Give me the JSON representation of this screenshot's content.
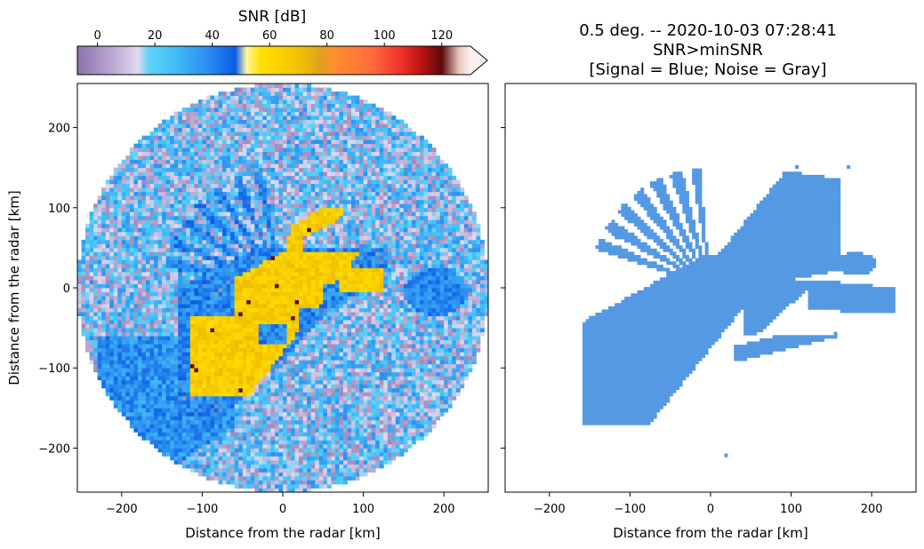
{
  "chart_data": [
    {
      "type": "heatmap",
      "name": "snr-ppi",
      "title": "",
      "colorbar": {
        "title": "SNR [dB]",
        "ticks": [
          0,
          20,
          40,
          60,
          80,
          100,
          120
        ],
        "range": [
          -7,
          130
        ],
        "extend": "max",
        "stops": [
          {
            "v": -7,
            "c": "#8d72ad"
          },
          {
            "v": 5,
            "c": "#b9a7d1"
          },
          {
            "v": 14,
            "c": "#e1d9ef"
          },
          {
            "v": 18,
            "c": "#5ed2f8"
          },
          {
            "v": 27,
            "c": "#42bdf5"
          },
          {
            "v": 38,
            "c": "#2d8ff0"
          },
          {
            "v": 48,
            "c": "#0a5ce6"
          },
          {
            "v": 52,
            "c": "#fff6a0"
          },
          {
            "v": 57,
            "c": "#ffe000"
          },
          {
            "v": 70,
            "c": "#f2c200"
          },
          {
            "v": 78,
            "c": "#e0a020"
          },
          {
            "v": 82,
            "c": "#ff9030"
          },
          {
            "v": 96,
            "c": "#ff6a3a"
          },
          {
            "v": 106,
            "c": "#f03028"
          },
          {
            "v": 114,
            "c": "#b01010"
          },
          {
            "v": 120,
            "c": "#5a0a0a"
          },
          {
            "v": 126,
            "c": "#e8c8c0"
          },
          {
            "v": 130,
            "c": "#fcf0ee"
          }
        ]
      },
      "xlabel": "Distance from the radar [km]",
      "ylabel": "Distance from the radar [km]",
      "xlim": [
        -255,
        255
      ],
      "ylim": [
        -255,
        255
      ],
      "xticks": [
        -200,
        -100,
        0,
        100,
        200
      ],
      "yticks": [
        -200,
        -100,
        0,
        100,
        200
      ],
      "max_range_km": 255,
      "grid": false
    },
    {
      "type": "heatmap",
      "name": "signal-mask",
      "title": "0.5 deg. -- 2020-10-03 07:28:41\nSNR>minSNR\n[Signal = Blue; Noise = Gray]",
      "title_lines": [
        "0.5 deg. -- 2020-10-03 07:28:41",
        "SNR>minSNR",
        "[Signal = Blue; Noise = Gray]"
      ],
      "xlabel": "Distance from the radar [km]",
      "ylabel": "",
      "xlim": [
        -255,
        255
      ],
      "ylim": [
        -255,
        255
      ],
      "xticks": [
        -200,
        -100,
        0,
        100,
        200
      ],
      "yticks": [
        -200,
        -100,
        0,
        100,
        200
      ],
      "signal_color": "#5599e3",
      "grid": false
    }
  ],
  "tick_minus": "−"
}
